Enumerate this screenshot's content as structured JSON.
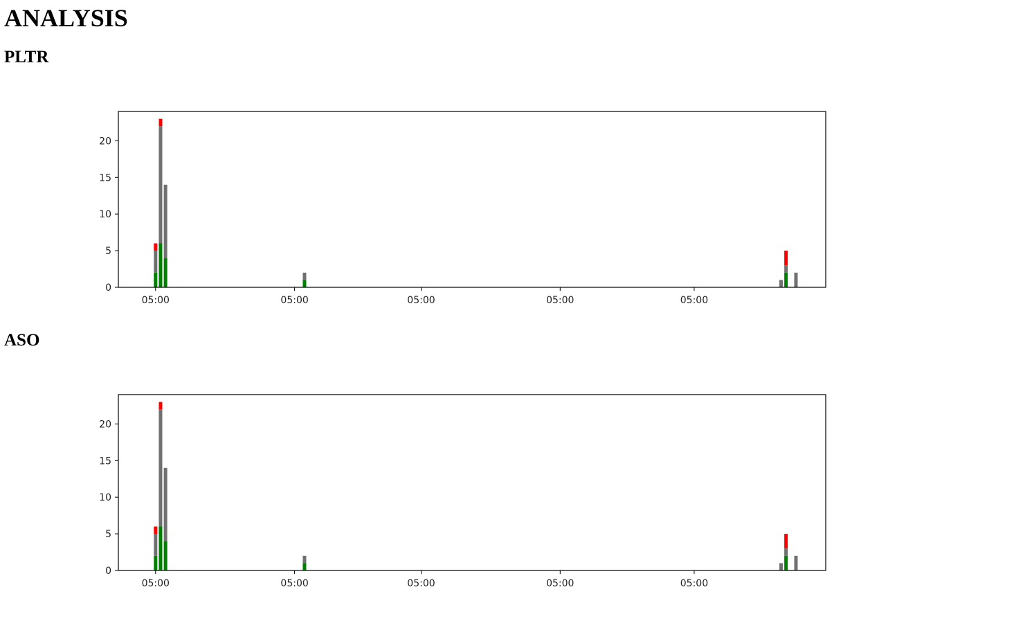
{
  "page": {
    "title": "ANALYSIS"
  },
  "colors": {
    "up": "#008000",
    "neutral": "#707070",
    "down": "#ff0000",
    "axis": "#000000"
  },
  "chart_data": [
    {
      "type": "bar",
      "stacked": true,
      "title": "PLTR",
      "xlabel": "",
      "ylabel": "",
      "ylim": [
        0,
        24
      ],
      "yticks": [
        0,
        5,
        10,
        15,
        20
      ],
      "xlim": [
        -7.5,
        135
      ],
      "xtick_positions": [
        0,
        28,
        53.5,
        81.5,
        108.5
      ],
      "xtick_labels": [
        "05:00",
        "05:00",
        "05:00",
        "05:00",
        "05:00"
      ],
      "x": [
        0,
        1,
        2,
        30,
        126,
        127,
        129
      ],
      "series": [
        {
          "color": "#008000",
          "values": [
            2,
            6,
            4,
            1,
            0,
            2,
            0
          ]
        },
        {
          "color": "#707070",
          "values": [
            3,
            16,
            10,
            1,
            1,
            1,
            2
          ]
        },
        {
          "color": "#ff0000",
          "values": [
            1,
            1,
            0,
            0,
            0,
            2,
            0
          ]
        }
      ],
      "grid": false,
      "legend": "none"
    },
    {
      "type": "bar",
      "stacked": true,
      "title": "ASO",
      "xlabel": "",
      "ylabel": "",
      "ylim": [
        0,
        24
      ],
      "yticks": [
        0,
        5,
        10,
        15,
        20
      ],
      "xlim": [
        -7.5,
        135
      ],
      "xtick_positions": [
        0,
        28,
        53.5,
        81.5,
        108.5
      ],
      "xtick_labels": [
        "05:00",
        "05:00",
        "05:00",
        "05:00",
        "05:00"
      ],
      "x": [
        0,
        1,
        2,
        30,
        126,
        127,
        129
      ],
      "series": [
        {
          "color": "#008000",
          "values": [
            2,
            6,
            4,
            1,
            0,
            2,
            0
          ]
        },
        {
          "color": "#707070",
          "values": [
            3,
            16,
            10,
            1,
            1,
            1,
            2
          ]
        },
        {
          "color": "#ff0000",
          "values": [
            1,
            1,
            0,
            0,
            0,
            2,
            0
          ]
        }
      ],
      "grid": false,
      "legend": "none"
    }
  ]
}
